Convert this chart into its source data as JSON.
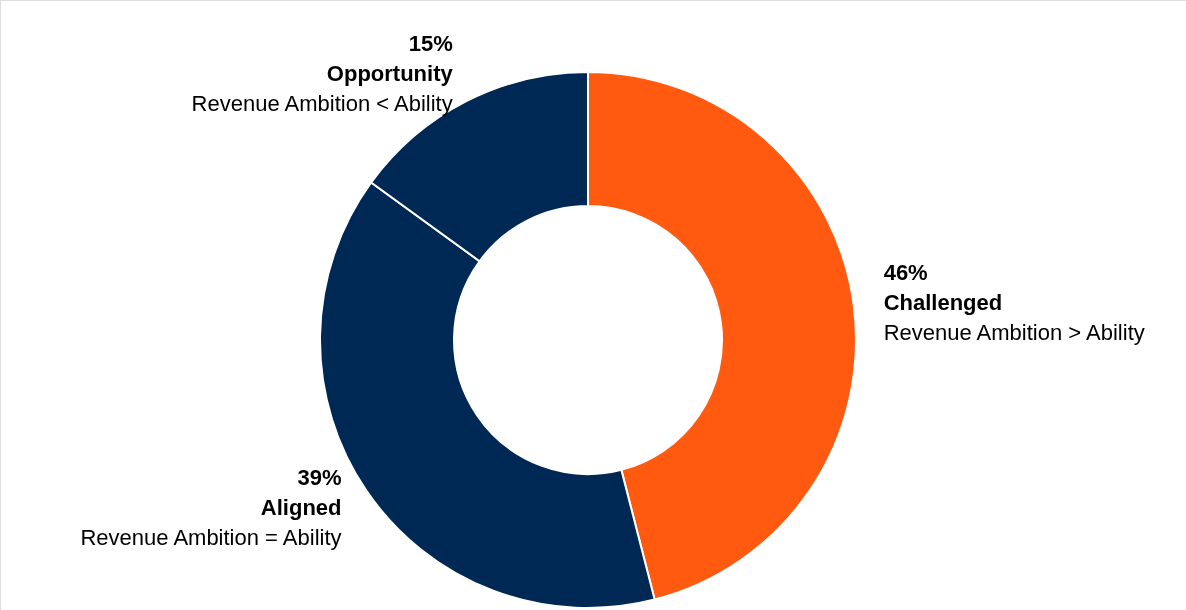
{
  "chart_data": {
    "type": "donut",
    "categories": [
      "Challenged",
      "Aligned",
      "Opportunity"
    ],
    "values": [
      46,
      39,
      15
    ],
    "colors": [
      "#ff5a0f",
      "#002855",
      "#002855"
    ],
    "value_labels": [
      "46%",
      "39%",
      "15%"
    ],
    "annotations": [
      "Revenue Ambition > Ability",
      "Revenue Ambition = Ability",
      "Revenue Ambition < Ability"
    ]
  }
}
